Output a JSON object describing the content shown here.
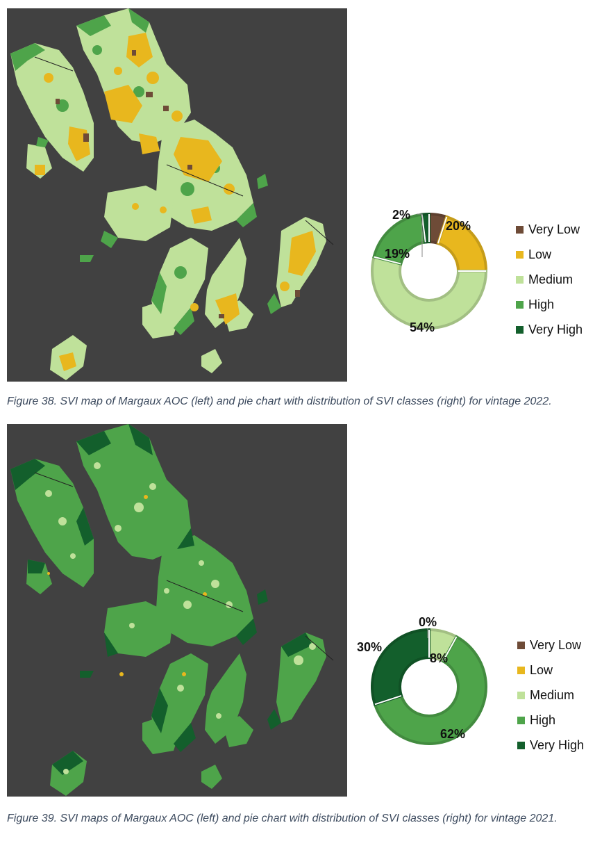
{
  "colors": {
    "map_background": "#414141",
    "Very Low": "#6e4b37",
    "Low": "#e8b71e",
    "Medium": "#bfe19a",
    "High": "#4ea44a",
    "Very High": "#135f2c"
  },
  "figures": [
    {
      "caption": "Figure 38. SVI map of Margaux AOC (left) and pie chart with distribution of SVI classes (right) for vintage 2022.",
      "map": {
        "description_icon": "map-image"
      }
    },
    {
      "caption": "Figure 39. SVI maps of Margaux AOC (left) and pie chart with distribution of SVI classes (right) for vintage 2021.",
      "map": {
        "description_icon": "map-image"
      }
    }
  ],
  "chart_data": [
    {
      "type": "pie",
      "variant": "donut",
      "categories": [
        "Very Low",
        "Low",
        "Medium",
        "High",
        "Very High"
      ],
      "values": [
        5,
        20,
        54,
        19,
        2
      ],
      "labels": [
        "",
        "20%",
        "54%",
        "19%",
        "2%"
      ],
      "colors": [
        "#6e4b37",
        "#e8b71e",
        "#bfe19a",
        "#4ea44a",
        "#135f2c"
      ],
      "legend": "right",
      "title": ""
    },
    {
      "type": "pie",
      "variant": "donut",
      "categories": [
        "Very Low",
        "Low",
        "Medium",
        "High",
        "Very High"
      ],
      "values": [
        0,
        0,
        8,
        62,
        30
      ],
      "labels": [
        "0%",
        "",
        "8%",
        "62%",
        "30%"
      ],
      "colors": [
        "#6e4b37",
        "#e8b71e",
        "#bfe19a",
        "#4ea44a",
        "#135f2c"
      ],
      "legend": "right",
      "title": ""
    }
  ]
}
